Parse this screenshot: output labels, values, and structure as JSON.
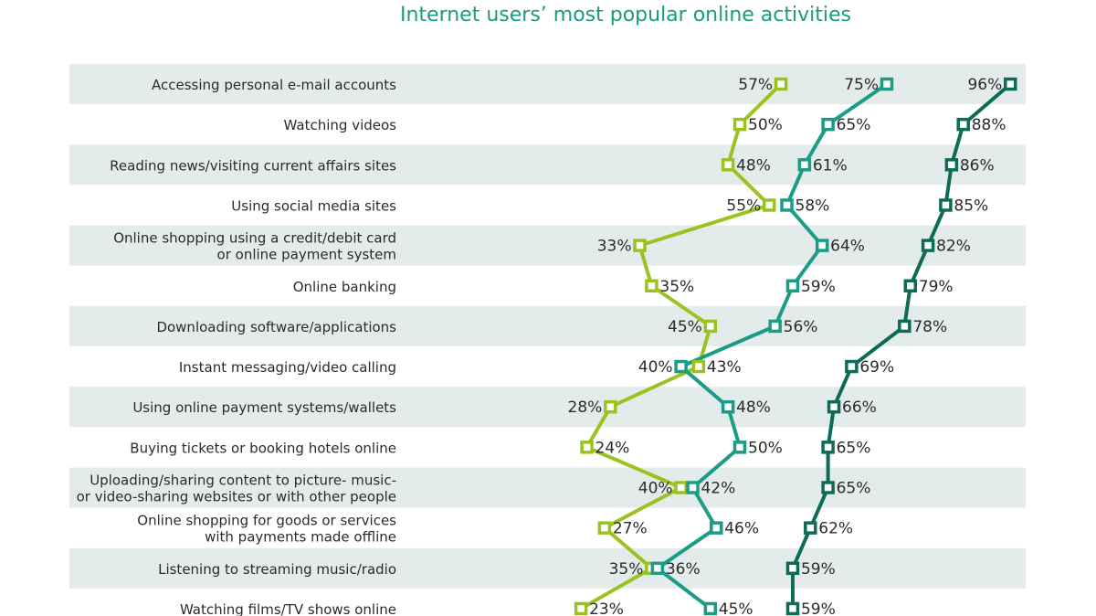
{
  "chart_data": {
    "type": "line",
    "title": "Internet users’ most popular online activities",
    "orientation": "horizontal",
    "categories": [
      [
        "Accessing personal e-mail accounts"
      ],
      [
        "Watching videos"
      ],
      [
        "Reading news/visiting current affairs sites"
      ],
      [
        "Using social media sites"
      ],
      [
        "Online shopping using a credit/debit card",
        "or online payment system"
      ],
      [
        "Online banking"
      ],
      [
        "Downloading software/applications"
      ],
      [
        "Instant messaging/video calling"
      ],
      [
        "Using online payment systems/wallets"
      ],
      [
        "Buying tickets or booking hotels online"
      ],
      [
        "Uploading/sharing content to picture- music-",
        "or video-sharing websites or with other people"
      ],
      [
        "Online shopping for goods or services",
        "with payments made offline"
      ],
      [
        "Listening to streaming music/radio"
      ],
      [
        "Watching films/TV shows online"
      ]
    ],
    "value_format": "%",
    "series": [
      {
        "color": "#9bc31f",
        "values": [
          57,
          50,
          48,
          55,
          33,
          35,
          45,
          43,
          28,
          24,
          40,
          27,
          35,
          23
        ]
      },
      {
        "color": "#1a9c86",
        "values": [
          75,
          65,
          61,
          58,
          64,
          59,
          56,
          40,
          48,
          50,
          42,
          46,
          36,
          45
        ]
      },
      {
        "color": "#0e6b55",
        "values": [
          96,
          88,
          86,
          85,
          82,
          79,
          78,
          69,
          66,
          65,
          65,
          62,
          59,
          59
        ]
      }
    ],
    "row_band_color": "#e3ecea",
    "grid": false,
    "legend": "none"
  }
}
